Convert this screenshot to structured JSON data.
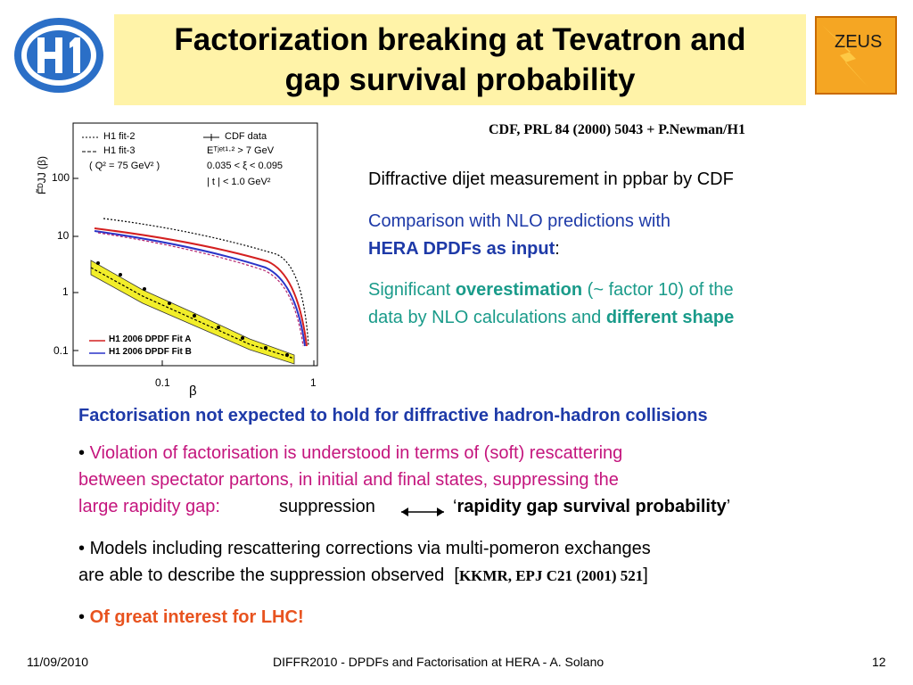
{
  "title": {
    "line1": "Factorization breaking at Tevatron and",
    "line2": "gap survival probability"
  },
  "logos": {
    "left": "H1",
    "right": "ZEUS"
  },
  "reference_top": "CDF, PRL 84 (2000) 5043 + P.Newman/H1",
  "plot": {
    "ylabel": "F̃ᴰJJ (β)",
    "xlabel": "β",
    "yticks": [
      "100",
      "10",
      "1",
      "0.1"
    ],
    "xticks": [
      "0.1",
      "1"
    ],
    "legend_left": [
      "H1 fit-2",
      "H1 fit-3",
      "( Q² = 75 GeV² )"
    ],
    "legend_right": [
      "CDF data",
      "Eᵀʲᵉᵗ¹·² > 7 GeV",
      "0.035 < ξ < 0.095",
      "| t | < 1.0 GeV²"
    ],
    "legend_bottom": [
      "H1 2006 DPDF Fit A",
      "H1 2006 DPDF Fit B"
    ]
  },
  "right_text": {
    "p1": "Diffractive dijet measurement in ppbar by CDF",
    "p2_line1": "Comparison with NLO predictions with",
    "p2_bold": "HERA DPDFs as input",
    "p2_colon": ":",
    "p3_a": "Significant ",
    "p3_b": "overestimation",
    "p3_c": " (~ factor 10) of the",
    "p3_d": "data by NLO calculations and ",
    "p3_e": "different shape"
  },
  "heading": "Factorisation not expected to hold for diffractive hadron-hadron collisions",
  "bullet1": {
    "line1": "Violation of factorisation is understood in terms of (soft) rescattering",
    "line2": "between spectator partons, in initial and final states, suppressing the",
    "line3": "large rapidity gap:",
    "suppression": "suppression",
    "quote_open": "‘",
    "bold": "rapidity gap survival probability",
    "quote_close": "’"
  },
  "bullet2": {
    "line1": "Models including rescattering corrections via multi-pomeron exchanges",
    "line2": "are able to describe the suppression observed",
    "ref": "KKMR, EPJ C21 (2001) 521",
    "bracket_open": "[",
    "bracket_close": "]"
  },
  "bullet3": "Of great interest for LHC!",
  "bullet_char": "•",
  "footer": {
    "date": "11/09/2010",
    "center": "DIFFR2010  -  DPDFs and Factorisation at HERA  -  A. Solano",
    "page": "12"
  },
  "colors": {
    "title_bg": "#fff3a8",
    "blue": "#1e3aa8",
    "teal": "#1a9b8a",
    "magenta": "#c4157d",
    "orange": "#e8531f"
  }
}
